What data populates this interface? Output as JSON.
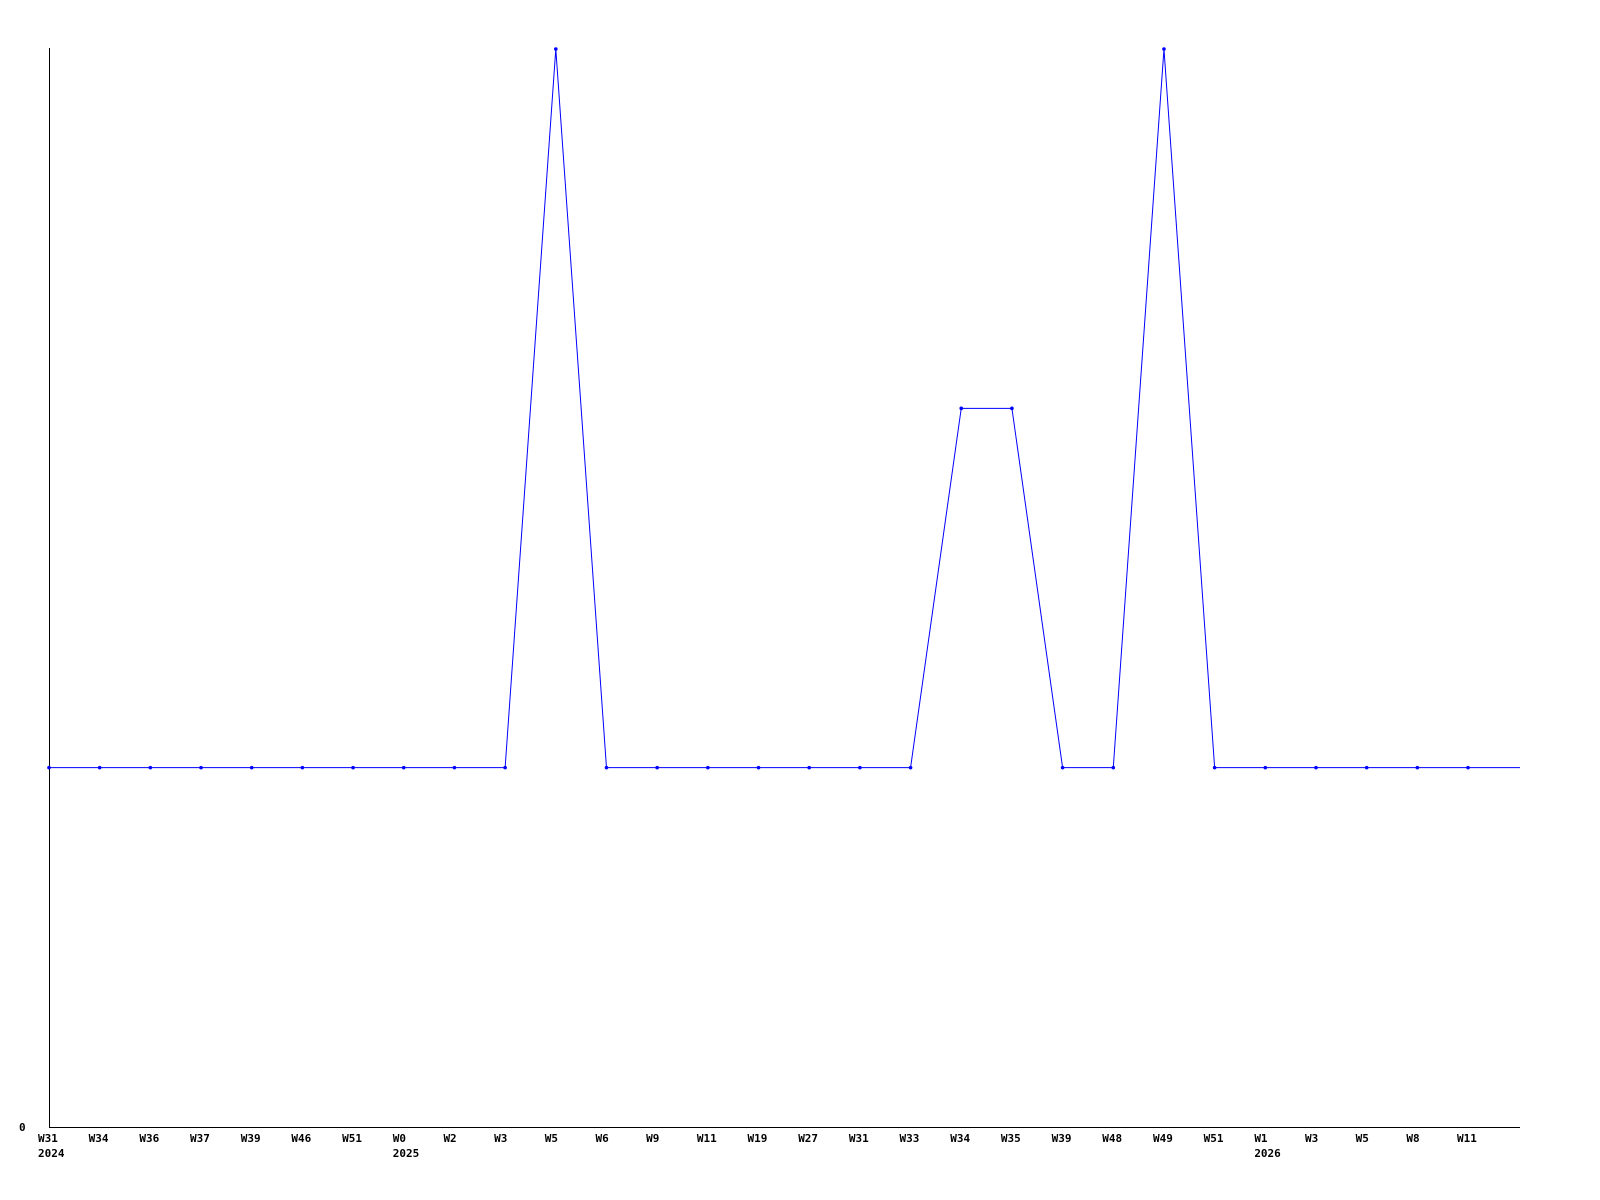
{
  "chart_data": {
    "type": "line",
    "title": "",
    "xlabel": "",
    "ylabel": "",
    "categories": [
      "W31",
      "W34",
      "W36",
      "W37",
      "W39",
      "W46",
      "W51",
      "W0",
      "W2",
      "W3",
      "W5",
      "W6",
      "W9",
      "W11",
      "W19",
      "W27",
      "W31",
      "W33",
      "W34",
      "W35",
      "W39",
      "W48",
      "W49",
      "W51",
      "W1",
      "W3",
      "W5",
      "W8",
      "W11"
    ],
    "year_labels": [
      {
        "index": 0,
        "label": "2024"
      },
      {
        "index": 7,
        "label": "2025"
      },
      {
        "index": 24,
        "label": "2026"
      }
    ],
    "series": [
      {
        "values": [
          1,
          1,
          1,
          1,
          1,
          1,
          1,
          1,
          1,
          1,
          3,
          1,
          1,
          1,
          1,
          1,
          1,
          1,
          2,
          2,
          1,
          1,
          3,
          1,
          1,
          1,
          1,
          1,
          1
        ],
        "color": "#0000ff"
      }
    ],
    "ylim": [
      0,
      3
    ],
    "y_tick_labels": [
      "0"
    ],
    "grid": false,
    "legend": "none"
  }
}
